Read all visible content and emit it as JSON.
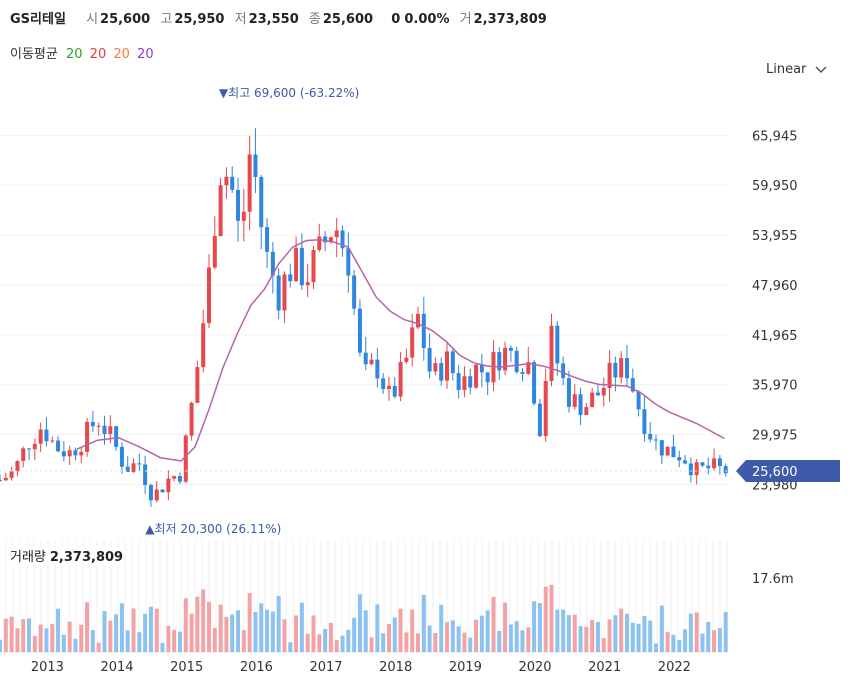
{
  "header": {
    "name": "GS리테일",
    "open_label": "시",
    "open": "25,600",
    "high_label": "고",
    "high": "25,950",
    "low_label": "저",
    "low": "23,550",
    "close_label": "종",
    "close": "25,600",
    "change": "0",
    "change_pct": "0.00%",
    "volume_label": "거",
    "volume": "2,373,809"
  },
  "moving_average": {
    "title": "이동평균",
    "periods": [
      {
        "value": "20",
        "color": "#2ca02c"
      },
      {
        "value": "20",
        "color": "#e03c3c"
      },
      {
        "value": "20",
        "color": "#f08030"
      },
      {
        "value": "20",
        "color": "#8a3ccf"
      }
    ]
  },
  "scale_selector": {
    "label": "Linear"
  },
  "volume_panel": {
    "title": "거래량",
    "value": "2,373,809",
    "axis_label": "17.6m"
  },
  "colors": {
    "up": "#e5484d",
    "down": "#2e86de",
    "ma": "#b565a7",
    "price_tag": "#3e5ba9",
    "vol_up": "#f2a3a6",
    "vol_down": "#8cc2f2"
  },
  "chart_data": {
    "type": "candlestick",
    "title": "GS리테일",
    "x_tick_labels": [
      "2013",
      "2014",
      "2015",
      "2016",
      "2017",
      "2018",
      "2019",
      "2020",
      "2021",
      "2022"
    ],
    "y_tick_labels": [
      "65,945",
      "59,950",
      "53,955",
      "47,960",
      "41,965",
      "35,970",
      "29,975",
      "23,980"
    ],
    "y_ticks": [
      65945,
      59950,
      53955,
      47960,
      41965,
      35970,
      29975,
      23980
    ],
    "current_price": 25600,
    "current_price_label": "25,600",
    "high_annotation": {
      "text": "▼최고",
      "value": "69,600",
      "pct": "(-63.22%)",
      "price": 69600,
      "date": 2015.6
    },
    "low_annotation": {
      "text": "▲최저",
      "value": "20,300",
      "pct": "(26.11%)",
      "price": 20300,
      "date": 2014.6
    },
    "period": "monthly",
    "x_range": [
      2012.4,
      2022.85
    ],
    "y_range": [
      18500,
      72000
    ],
    "volume_max_label": "17.6m",
    "volume_max": 17600000,
    "close_path": [
      {
        "t": 2012.4,
        "v": 24500
      },
      {
        "t": 2012.6,
        "v": 25500
      },
      {
        "t": 2012.8,
        "v": 29000
      },
      {
        "t": 2013.0,
        "v": 31000
      },
      {
        "t": 2013.2,
        "v": 28500
      },
      {
        "t": 2013.4,
        "v": 27800
      },
      {
        "t": 2013.6,
        "v": 29500
      },
      {
        "t": 2013.8,
        "v": 32000
      },
      {
        "t": 2014.0,
        "v": 29500
      },
      {
        "t": 2014.2,
        "v": 26000
      },
      {
        "t": 2014.4,
        "v": 26500
      },
      {
        "t": 2014.6,
        "v": 22500
      },
      {
        "t": 2014.8,
        "v": 24500
      },
      {
        "t": 2015.0,
        "v": 25500
      },
      {
        "t": 2015.2,
        "v": 36000
      },
      {
        "t": 2015.4,
        "v": 49000
      },
      {
        "t": 2015.55,
        "v": 62000
      },
      {
        "t": 2015.7,
        "v": 61000
      },
      {
        "t": 2015.85,
        "v": 53000
      },
      {
        "t": 2016.0,
        "v": 65000
      },
      {
        "t": 2016.2,
        "v": 52000
      },
      {
        "t": 2016.4,
        "v": 47000
      },
      {
        "t": 2016.6,
        "v": 50500
      },
      {
        "t": 2016.8,
        "v": 49000
      },
      {
        "t": 2017.0,
        "v": 52000
      },
      {
        "t": 2017.2,
        "v": 55500
      },
      {
        "t": 2017.4,
        "v": 51000
      },
      {
        "t": 2017.6,
        "v": 36500
      },
      {
        "t": 2017.8,
        "v": 38500
      },
      {
        "t": 2018.0,
        "v": 34000
      },
      {
        "t": 2018.2,
        "v": 38000
      },
      {
        "t": 2018.4,
        "v": 44000
      },
      {
        "t": 2018.6,
        "v": 36500
      },
      {
        "t": 2018.8,
        "v": 39000
      },
      {
        "t": 2019.0,
        "v": 36000
      },
      {
        "t": 2019.2,
        "v": 38000
      },
      {
        "t": 2019.4,
        "v": 37500
      },
      {
        "t": 2019.6,
        "v": 40000
      },
      {
        "t": 2019.8,
        "v": 39500
      },
      {
        "t": 2020.0,
        "v": 38500
      },
      {
        "t": 2020.15,
        "v": 31000
      },
      {
        "t": 2020.3,
        "v": 42000
      },
      {
        "t": 2020.45,
        "v": 37000
      },
      {
        "t": 2020.6,
        "v": 34000
      },
      {
        "t": 2020.8,
        "v": 33500
      },
      {
        "t": 2021.0,
        "v": 35000
      },
      {
        "t": 2021.2,
        "v": 37500
      },
      {
        "t": 2021.4,
        "v": 38000
      },
      {
        "t": 2021.6,
        "v": 32500
      },
      {
        "t": 2021.8,
        "v": 29000
      },
      {
        "t": 2022.0,
        "v": 28000
      },
      {
        "t": 2022.2,
        "v": 27500
      },
      {
        "t": 2022.4,
        "v": 25500
      },
      {
        "t": 2022.6,
        "v": 26000
      },
      {
        "t": 2022.8,
        "v": 25600
      }
    ],
    "ma_path": [
      {
        "t": 2013.5,
        "v": 28200
      },
      {
        "t": 2013.8,
        "v": 29300
      },
      {
        "t": 2014.1,
        "v": 29600
      },
      {
        "t": 2014.4,
        "v": 28500
      },
      {
        "t": 2014.7,
        "v": 27200
      },
      {
        "t": 2015.0,
        "v": 26800
      },
      {
        "t": 2015.2,
        "v": 28500
      },
      {
        "t": 2015.4,
        "v": 33000
      },
      {
        "t": 2015.6,
        "v": 38000
      },
      {
        "t": 2015.8,
        "v": 42000
      },
      {
        "t": 2016.0,
        "v": 45500
      },
      {
        "t": 2016.2,
        "v": 47500
      },
      {
        "t": 2016.4,
        "v": 50500
      },
      {
        "t": 2016.6,
        "v": 52500
      },
      {
        "t": 2016.8,
        "v": 53300
      },
      {
        "t": 2017.0,
        "v": 53400
      },
      {
        "t": 2017.2,
        "v": 53100
      },
      {
        "t": 2017.4,
        "v": 52500
      },
      {
        "t": 2017.6,
        "v": 49500
      },
      {
        "t": 2017.8,
        "v": 46500
      },
      {
        "t": 2018.0,
        "v": 44800
      },
      {
        "t": 2018.2,
        "v": 43800
      },
      {
        "t": 2018.4,
        "v": 43300
      },
      {
        "t": 2018.6,
        "v": 42500
      },
      {
        "t": 2018.8,
        "v": 41200
      },
      {
        "t": 2019.0,
        "v": 39500
      },
      {
        "t": 2019.2,
        "v": 38600
      },
      {
        "t": 2019.4,
        "v": 38200
      },
      {
        "t": 2019.6,
        "v": 38100
      },
      {
        "t": 2019.8,
        "v": 38300
      },
      {
        "t": 2020.0,
        "v": 38500
      },
      {
        "t": 2020.2,
        "v": 38200
      },
      {
        "t": 2020.4,
        "v": 37700
      },
      {
        "t": 2020.6,
        "v": 37000
      },
      {
        "t": 2020.8,
        "v": 36400
      },
      {
        "t": 2021.0,
        "v": 36000
      },
      {
        "t": 2021.2,
        "v": 35900
      },
      {
        "t": 2021.4,
        "v": 35800
      },
      {
        "t": 2021.6,
        "v": 35000
      },
      {
        "t": 2021.8,
        "v": 33700
      },
      {
        "t": 2022.0,
        "v": 32700
      },
      {
        "t": 2022.2,
        "v": 32000
      },
      {
        "t": 2022.4,
        "v": 31300
      },
      {
        "t": 2022.6,
        "v": 30400
      },
      {
        "t": 2022.8,
        "v": 29500
      }
    ]
  }
}
